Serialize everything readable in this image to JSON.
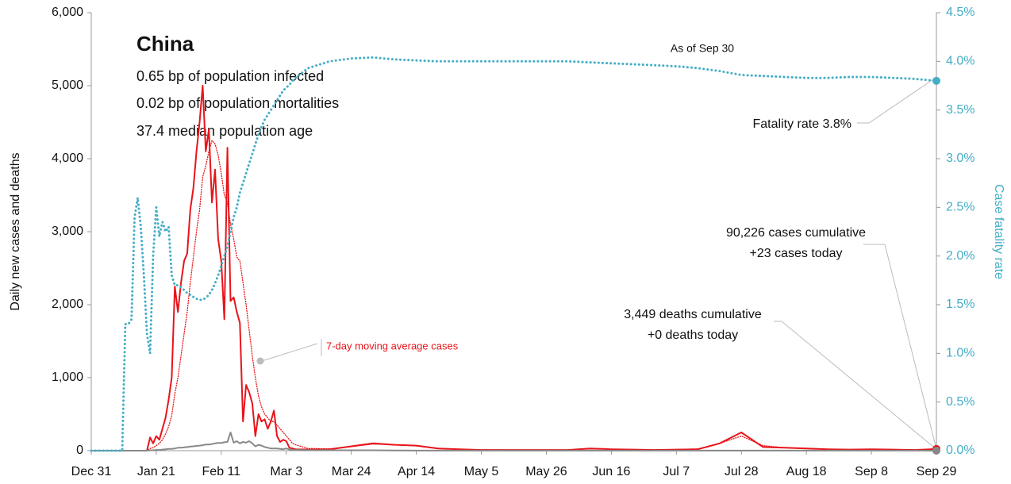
{
  "chart_data": {
    "type": "line",
    "title": "China",
    "subtitle": [
      "0.65 bp of population infected",
      "0.02 bp of population mortalities",
      "37.4 median population age"
    ],
    "ylabel": "Daily new cases and deaths",
    "y2label": "Case fatality rate",
    "annotations": [
      "As of Sep 30",
      "Fatality rate 3.8%",
      "90,226 cases cumulative",
      "+23 cases today",
      "3,449 deaths cumulative",
      "+0 deaths today"
    ],
    "x": [
      0,
      5,
      10,
      11,
      12,
      13,
      14,
      15,
      16,
      17,
      18,
      19,
      20,
      21,
      22,
      23,
      24,
      25,
      26,
      27,
      28,
      29,
      30,
      31,
      32,
      33,
      34,
      35,
      36,
      37,
      38,
      39,
      40,
      41,
      42,
      43,
      44,
      45,
      46,
      47,
      48,
      49,
      50,
      51,
      52,
      53,
      54,
      55,
      56,
      57,
      58,
      59,
      60,
      61,
      62,
      63,
      64,
      65,
      66,
      70,
      77,
      84,
      91,
      98,
      105,
      112,
      119,
      126,
      133,
      140,
      147,
      154,
      161,
      168,
      175,
      182,
      189,
      196,
      203,
      210,
      217,
      224,
      231,
      238,
      245,
      252,
      259,
      266,
      273
    ],
    "xlim": [
      0,
      273
    ],
    "xticks": [
      {
        "value": 0,
        "label": "Dec 31"
      },
      {
        "value": 21,
        "label": "Jan 21"
      },
      {
        "value": 42,
        "label": "Feb 11"
      },
      {
        "value": 63,
        "label": "Mar 3"
      },
      {
        "value": 84,
        "label": "Mar 24"
      },
      {
        "value": 105,
        "label": "Apr 14"
      },
      {
        "value": 126,
        "label": "May 5"
      },
      {
        "value": 147,
        "label": "May 26"
      },
      {
        "value": 168,
        "label": "Jun 16"
      },
      {
        "value": 189,
        "label": "Jul 7"
      },
      {
        "value": 210,
        "label": "Jul 28"
      },
      {
        "value": 231,
        "label": "Aug 18"
      },
      {
        "value": 252,
        "label": "Sep 8"
      },
      {
        "value": 273,
        "label": "Sep 29"
      }
    ],
    "ylim": [
      0,
      6000
    ],
    "yticks": [
      0,
      {
        "value": 1000,
        "label": "1,000"
      },
      {
        "value": 2000,
        "label": "2,000"
      },
      {
        "value": 3000,
        "label": "3,000"
      },
      {
        "value": 4000,
        "label": "4,000"
      },
      {
        "value": 5000,
        "label": "5,000"
      },
      {
        "value": 6000,
        "label": "6,000"
      }
    ],
    "y2lim": [
      0,
      4.5
    ],
    "y2ticks": [
      {
        "value": 0,
        "label": "0.0%"
      },
      {
        "value": 0.5,
        "label": "0.5%"
      },
      {
        "value": 1,
        "label": "1.0%"
      },
      {
        "value": 1.5,
        "label": "1.5%"
      },
      {
        "value": 2,
        "label": "2.0%"
      },
      {
        "value": 2.5,
        "label": "2.5%"
      },
      {
        "value": 3,
        "label": "3.0%"
      },
      {
        "value": 3.5,
        "label": "3.5%"
      },
      {
        "value": 4,
        "label": "4.0%"
      },
      {
        "value": 4.5,
        "label": "4.5%"
      }
    ],
    "series": [
      {
        "color": "#e8141a",
        "style": "solid",
        "values": [
          0,
          0,
          0,
          0,
          0,
          0,
          0,
          0,
          0,
          0,
          0,
          180,
          100,
          200,
          150,
          300,
          450,
          700,
          1000,
          2250,
          1900,
          2300,
          2600,
          2700,
          3300,
          3600,
          4100,
          4500,
          5000,
          4100,
          4400,
          3400,
          3850,
          2900,
          2600,
          1800,
          4150,
          2050,
          2100,
          1900,
          1750,
          400,
          900,
          800,
          650,
          200,
          500,
          400,
          430,
          300,
          400,
          550,
          200,
          120,
          150,
          130,
          40,
          30,
          20,
          15,
          20,
          60,
          100,
          80,
          70,
          30,
          20,
          10,
          10,
          10,
          10,
          10,
          30,
          20,
          15,
          10,
          15,
          20,
          100,
          250,
          50,
          40,
          30,
          20,
          15,
          20,
          15,
          10,
          23
        ]
      },
      {
        "name": "7-day moving average cases",
        "color": "#e8141a",
        "style": "dotted",
        "values": [
          0,
          0,
          0,
          0,
          0,
          0,
          0,
          0,
          0,
          0,
          0,
          30,
          40,
          70,
          100,
          150,
          230,
          330,
          480,
          780,
          1000,
          1300,
          1600,
          1900,
          2300,
          2650,
          3000,
          3300,
          3750,
          3900,
          4100,
          4250,
          4200,
          4050,
          3800,
          3500,
          3400,
          3100,
          2900,
          2650,
          2600,
          2300,
          2000,
          1650,
          1300,
          1000,
          750,
          600,
          500,
          450,
          400,
          400,
          350,
          300,
          250,
          200,
          150,
          100,
          80,
          30,
          25,
          55,
          90,
          80,
          65,
          30,
          20,
          12,
          10,
          10,
          10,
          10,
          25,
          20,
          15,
          12,
          15,
          25,
          100,
          200,
          70,
          40,
          30,
          20,
          15,
          18,
          15,
          12,
          15
        ]
      },
      {
        "color": "#888888",
        "style": "solid",
        "values": [
          0,
          0,
          0,
          0,
          0,
          0,
          0,
          0,
          0,
          0,
          0,
          5,
          5,
          10,
          10,
          15,
          20,
          25,
          25,
          30,
          40,
          40,
          45,
          50,
          55,
          60,
          65,
          70,
          75,
          85,
          85,
          90,
          100,
          105,
          105,
          115,
          120,
          250,
          110,
          130,
          100,
          120,
          110,
          130,
          100,
          60,
          80,
          70,
          50,
          40,
          30,
          30,
          30,
          25,
          20,
          30,
          15,
          10,
          10,
          5,
          5,
          5,
          5,
          3,
          1,
          1,
          1,
          1,
          1,
          1,
          1,
          1,
          1,
          1,
          1,
          1,
          1,
          1,
          1,
          1,
          1,
          1,
          1,
          1,
          1,
          1,
          1,
          1,
          0
        ]
      },
      {
        "color": "#45aec6",
        "style": "dotted",
        "axis": "y2",
        "values": [
          0,
          0,
          0,
          1.3,
          1.3,
          1.35,
          2.4,
          2.6,
          2.3,
          1.8,
          1.2,
          1.0,
          2.0,
          2.5,
          2.2,
          2.35,
          2.25,
          2.3,
          1.8,
          1.7,
          1.7,
          1.68,
          1.65,
          1.62,
          1.6,
          1.58,
          1.56,
          1.55,
          1.55,
          1.57,
          1.6,
          1.65,
          1.72,
          1.8,
          1.9,
          2.0,
          2.1,
          2.25,
          2.4,
          2.5,
          2.65,
          2.75,
          2.85,
          2.95,
          3.05,
          3.15,
          3.25,
          3.33,
          3.4,
          3.45,
          3.5,
          3.55,
          3.6,
          3.65,
          3.7,
          3.73,
          3.76,
          3.8,
          3.83,
          3.93,
          4.0,
          4.03,
          4.04,
          4.02,
          4.01,
          4.0,
          4.0,
          4.0,
          4.0,
          4.0,
          4.0,
          4.0,
          3.99,
          3.98,
          3.97,
          3.96,
          3.95,
          3.93,
          3.9,
          3.86,
          3.85,
          3.84,
          3.83,
          3.83,
          3.84,
          3.84,
          3.83,
          3.82,
          3.8
        ]
      }
    ]
  }
}
